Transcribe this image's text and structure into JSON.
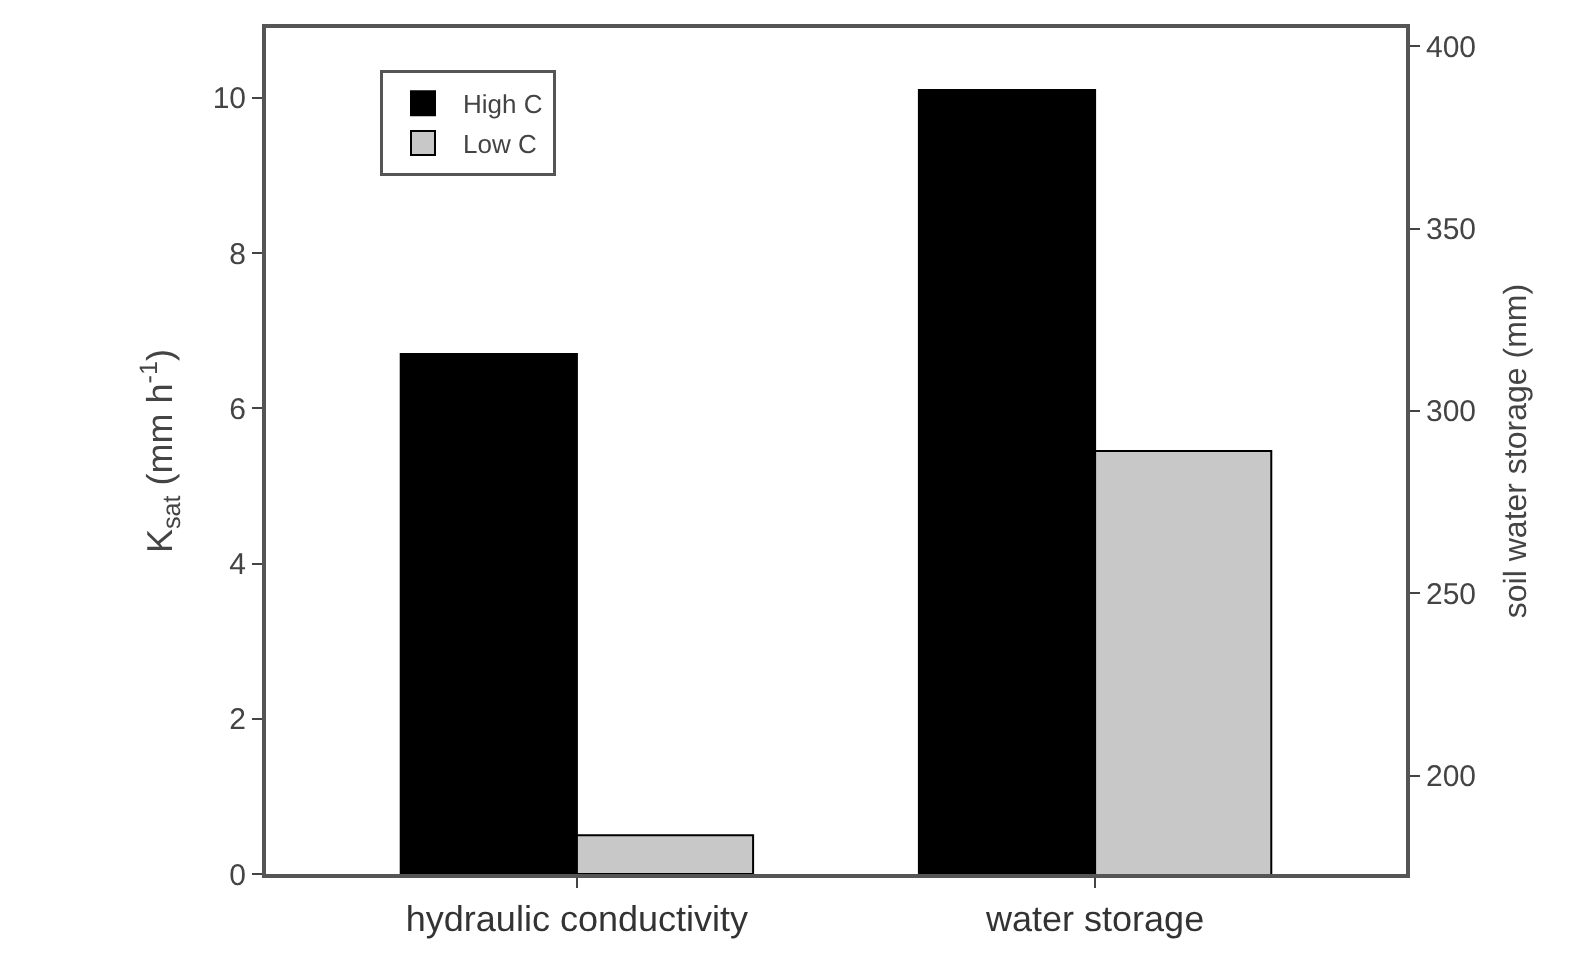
{
  "chart_data": {
    "type": "bar",
    "ylabel": "K$_{sat}$ (mm h$^{-1}$)",
    "y2label": "soil water storage (mm)",
    "categories": [
      "hydraulic conductivity",
      "water storage"
    ],
    "series": [
      {
        "name": "High C",
        "color": "#000000",
        "values": [
          6.7,
          null
        ]
      },
      {
        "name": "Low C",
        "color": "#c8c8c8",
        "values": [
          0.5,
          null
        ]
      },
      {
        "color": "#000000",
        "values": [
          null,
          388
        ],
        "axis": "y2"
      },
      {
        "color": "#c8c8c8",
        "values": [
          null,
          289
        ],
        "axis": "y2"
      }
    ],
    "ylim": [
      0,
      10.9
    ],
    "yticks": [
      0,
      2,
      4,
      6,
      8,
      10
    ],
    "y2lim": [
      173,
      405
    ],
    "y2ticks": [
      200,
      250,
      300,
      350,
      400
    ],
    "legend": "top left"
  }
}
